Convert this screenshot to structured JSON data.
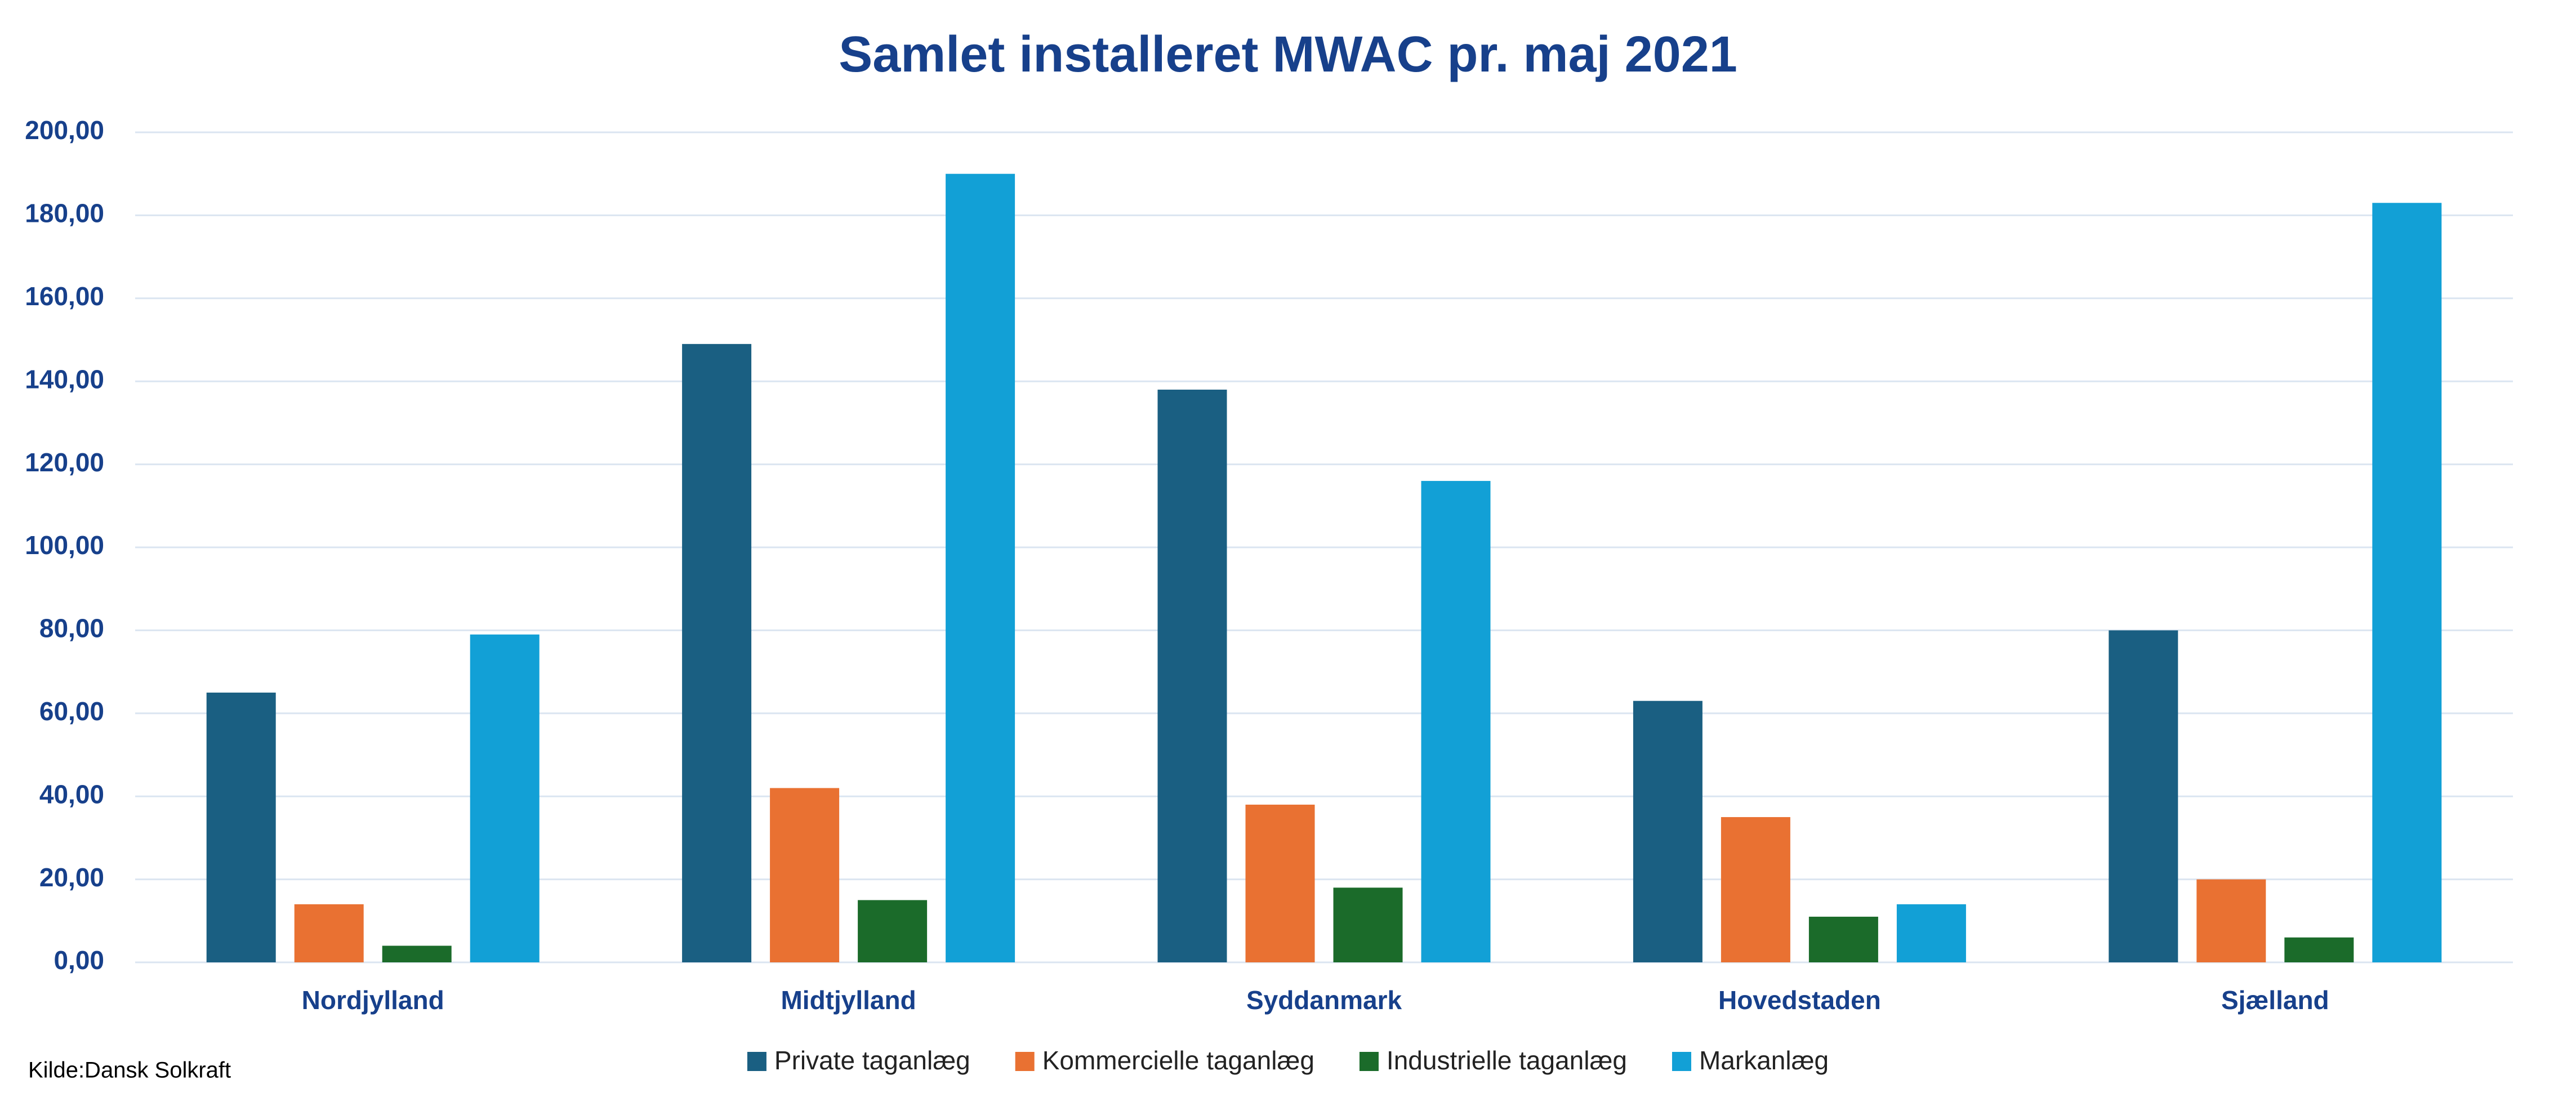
{
  "chart_data": {
    "type": "bar",
    "title": "Samlet installeret MWAC pr. maj 2021",
    "source": "Kilde:Dansk Solkraft",
    "categories": [
      "Nordjylland",
      "Midtjylland",
      "Syddanmark",
      "Hovedstaden",
      "Sjælland"
    ],
    "series": [
      {
        "name": "Private taganlæg",
        "color": "#1a5f82",
        "values": [
          65,
          149,
          138,
          63,
          80
        ]
      },
      {
        "name": "Kommercielle taganlæg",
        "color": "#e97132",
        "values": [
          14,
          42,
          38,
          35,
          20
        ]
      },
      {
        "name": "Industrielle taganlæg",
        "color": "#1b6b2a",
        "values": [
          4,
          15,
          18,
          11,
          6
        ]
      },
      {
        "name": "Markanlæg",
        "color": "#12a0d6",
        "values": [
          79,
          190,
          116,
          14,
          183
        ]
      }
    ],
    "ylim": [
      0,
      200
    ],
    "yticks": [
      {
        "value": 0,
        "label": "0,00"
      },
      {
        "value": 20,
        "label": "20,00"
      },
      {
        "value": 40,
        "label": "40,00"
      },
      {
        "value": 60,
        "label": "60,00"
      },
      {
        "value": 80,
        "label": "80,00"
      },
      {
        "value": 100,
        "label": "100,00"
      },
      {
        "value": 120,
        "label": "120,00"
      },
      {
        "value": 140,
        "label": "140,00"
      },
      {
        "value": 160,
        "label": "160,00"
      },
      {
        "value": 180,
        "label": "180,00"
      },
      {
        "value": 200,
        "label": "200,00"
      }
    ],
    "grid": true,
    "legend": "bottom"
  }
}
